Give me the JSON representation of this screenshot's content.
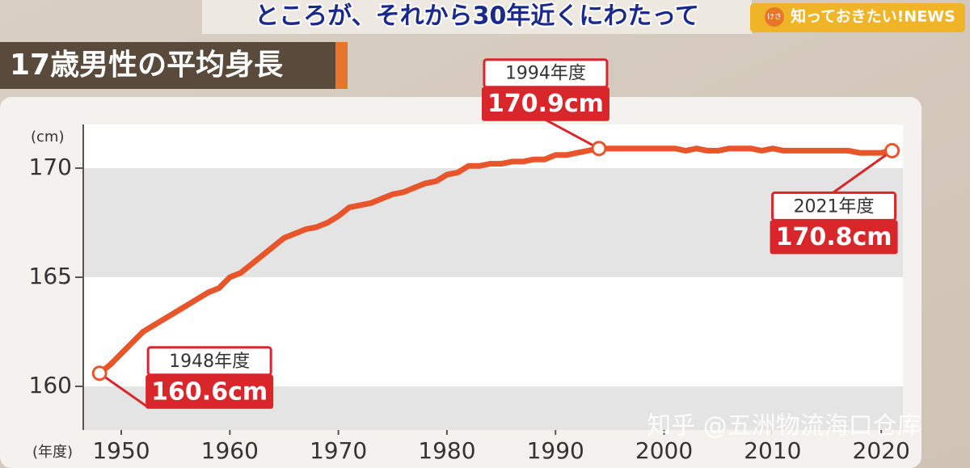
{
  "caption": "ところが、それから30年近くにわたって",
  "badge": {
    "small": "けさ",
    "text": "知っておきたい!NEWS"
  },
  "watermark": "知乎 @五洲物流海口仓库",
  "chart_data": {
    "type": "line",
    "title": "17歳男性の平均身長",
    "y_label": "(cm)",
    "x_label": "(年度)",
    "x": [
      1948,
      1949,
      1950,
      1951,
      1952,
      1953,
      1954,
      1955,
      1956,
      1957,
      1958,
      1959,
      1960,
      1961,
      1962,
      1963,
      1964,
      1965,
      1966,
      1967,
      1968,
      1969,
      1970,
      1971,
      1972,
      1973,
      1974,
      1975,
      1976,
      1977,
      1978,
      1979,
      1980,
      1981,
      1982,
      1983,
      1984,
      1985,
      1986,
      1987,
      1988,
      1989,
      1990,
      1991,
      1992,
      1993,
      1994,
      1995,
      1996,
      1997,
      1998,
      1999,
      2000,
      2001,
      2002,
      2003,
      2004,
      2005,
      2006,
      2007,
      2008,
      2009,
      2010,
      2011,
      2012,
      2013,
      2014,
      2015,
      2016,
      2017,
      2018,
      2019,
      2020,
      2021
    ],
    "series": [
      {
        "name": "17歳男性の平均身長",
        "color": "#e8552a",
        "values": [
          160.6,
          161.0,
          161.5,
          162.0,
          162.5,
          162.8,
          163.1,
          163.4,
          163.7,
          164.0,
          164.3,
          164.5,
          165.0,
          165.2,
          165.6,
          166.0,
          166.4,
          166.8,
          167.0,
          167.2,
          167.3,
          167.5,
          167.8,
          168.2,
          168.3,
          168.4,
          168.6,
          168.8,
          168.9,
          169.1,
          169.3,
          169.4,
          169.7,
          169.8,
          170.1,
          170.1,
          170.2,
          170.2,
          170.3,
          170.3,
          170.4,
          170.4,
          170.6,
          170.6,
          170.7,
          170.8,
          170.9,
          170.9,
          170.9,
          170.9,
          170.9,
          170.9,
          170.9,
          170.9,
          170.8,
          170.9,
          170.8,
          170.8,
          170.9,
          170.9,
          170.9,
          170.8,
          170.9,
          170.8,
          170.8,
          170.8,
          170.8,
          170.8,
          170.8,
          170.8,
          170.7,
          170.7,
          170.7,
          170.8
        ]
      }
    ],
    "annotations": [
      {
        "year": "1948年度",
        "value": "160.6cm"
      },
      {
        "year": "1994年度",
        "value": "170.9cm"
      },
      {
        "year": "2021年度",
        "value": "170.8cm"
      }
    ],
    "xlim": [
      1946.5,
      2022
    ],
    "ylim": [
      158,
      172
    ],
    "xticks": [
      1950,
      1960,
      1970,
      1980,
      1990,
      2000,
      2010,
      2020
    ],
    "yticks": [
      160,
      165,
      170
    ]
  }
}
